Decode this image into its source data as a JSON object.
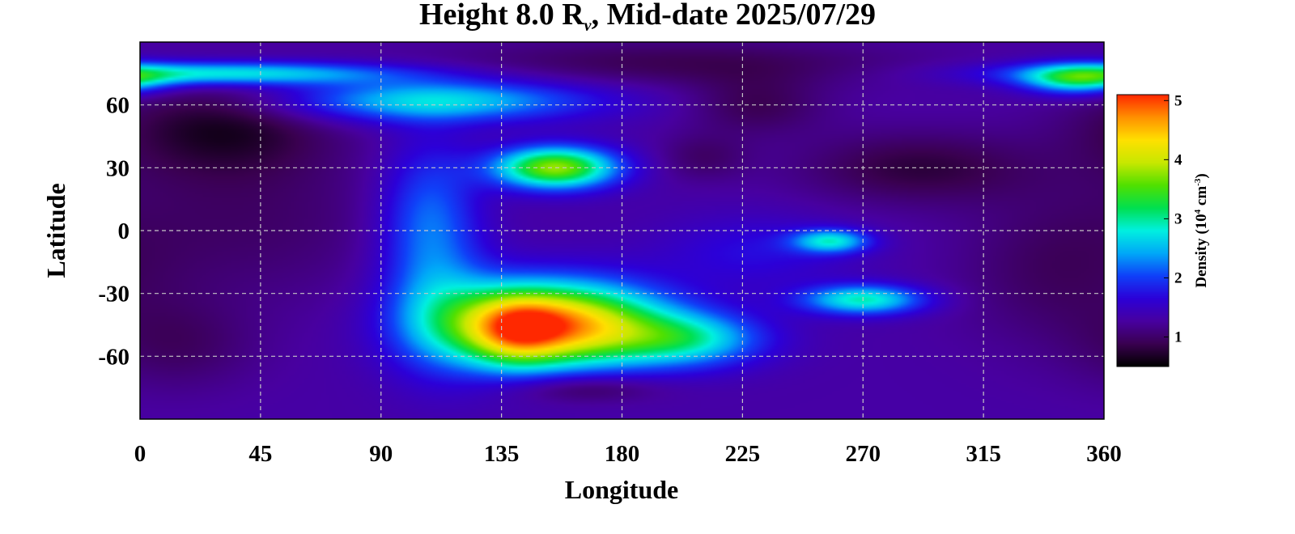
{
  "chart_data": {
    "type": "heatmap",
    "title_pre": "Height 8.0 R",
    "title_sub": "ν",
    "title_post": ", Mid-date 2025/07/29",
    "xlabel": "Longitude",
    "ylabel": "Latitude",
    "xlim": [
      0,
      360
    ],
    "ylim": [
      -90,
      90
    ],
    "x_ticks": [
      0,
      45,
      90,
      135,
      180,
      225,
      270,
      315,
      360
    ],
    "y_ticks": [
      60,
      30,
      0,
      -30,
      -60
    ],
    "y_tick_labels": [
      "60",
      "30",
      "0",
      "-30",
      "-60"
    ],
    "grid": true,
    "colorbar": {
      "label_pre": "Density (10",
      "label_exp1": "4",
      "label_mid": " cm",
      "label_exp2": "-3",
      "label_post": ")",
      "range": [
        0.5,
        5.1
      ],
      "ticks": [
        1,
        2,
        3,
        4,
        5
      ],
      "colors": [
        "#000000",
        "#3a0050",
        "#4800a0",
        "#2c00d8",
        "#1040f8",
        "#00a8f8",
        "#00f0e0",
        "#00e050",
        "#50e000",
        "#c8e800",
        "#ffe000",
        "#ff9000",
        "#ff2800"
      ]
    },
    "background_density": 1.3,
    "features": [
      {
        "lon": 155,
        "lat": -45,
        "density": 3.4,
        "sigma_lon": 28,
        "sigma_lat": 14
      },
      {
        "lon": 140,
        "lat": -48,
        "density": 1.2,
        "sigma_lon": 12,
        "sigma_lat": 12
      },
      {
        "lon": 205,
        "lat": -52,
        "density": 1.3,
        "sigma_lon": 20,
        "sigma_lat": 9
      },
      {
        "lon": 112,
        "lat": -40,
        "density": 0.7,
        "sigma_lon": 15,
        "sigma_lat": 22
      },
      {
        "lon": 108,
        "lat": 5,
        "density": 0.9,
        "sigma_lon": 13,
        "sigma_lat": 26
      },
      {
        "lon": 155,
        "lat": 30,
        "density": 2.5,
        "sigma_lon": 16,
        "sigma_lat": 7
      },
      {
        "lon": 110,
        "lat": 62,
        "density": 1.4,
        "sigma_lon": 40,
        "sigma_lat": 7
      },
      {
        "lon": 30,
        "lat": 75,
        "density": 1.6,
        "sigma_lon": 45,
        "sigma_lat": 4
      },
      {
        "lon": 350,
        "lat": 72,
        "density": 1.5,
        "sigma_lon": 14,
        "sigma_lat": 5
      },
      {
        "lon": 258,
        "lat": -5,
        "density": 1.4,
        "sigma_lon": 10,
        "sigma_lat": 4
      },
      {
        "lon": 270,
        "lat": -33,
        "density": 1.6,
        "sigma_lon": 16,
        "sigma_lat": 5
      },
      {
        "lon": 230,
        "lat": -10,
        "density": 0.4,
        "sigma_lon": 25,
        "sigma_lat": 12
      },
      {
        "lon": 30,
        "lat": 50,
        "density": -0.6,
        "sigma_lon": 28,
        "sigma_lat": 16
      },
      {
        "lon": 40,
        "lat": 5,
        "density": -0.3,
        "sigma_lon": 40,
        "sigma_lat": 28
      },
      {
        "lon": 290,
        "lat": 30,
        "density": -0.5,
        "sigma_lon": 30,
        "sigma_lat": 12
      },
      {
        "lon": 230,
        "lat": 60,
        "density": -0.4,
        "sigma_lon": 18,
        "sigma_lat": 10
      },
      {
        "lon": 210,
        "lat": 35,
        "density": -0.3,
        "sigma_lon": 12,
        "sigma_lat": 8
      },
      {
        "lon": 340,
        "lat": -20,
        "density": -0.3,
        "sigma_lon": 25,
        "sigma_lat": 25
      },
      {
        "lon": 15,
        "lat": -55,
        "density": -0.3,
        "sigma_lon": 20,
        "sigma_lat": 15
      },
      {
        "lon": 165,
        "lat": -75,
        "density": -0.5,
        "sigma_lon": 20,
        "sigma_lat": 5
      },
      {
        "lon": 200,
        "lat": 80,
        "density": -0.4,
        "sigma_lon": 60,
        "sigma_lat": 8
      }
    ]
  }
}
